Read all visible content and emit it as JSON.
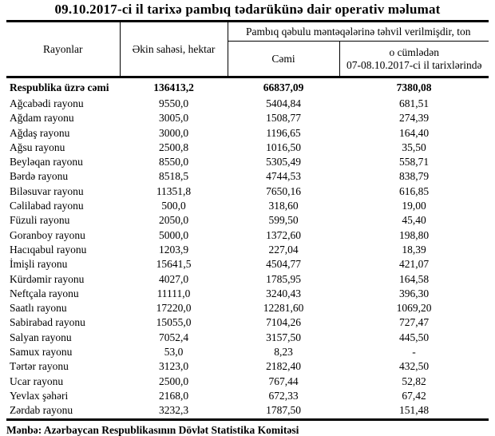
{
  "title": "09.10.2017-ci il tarixə pambıq tədarükünə dair operativ məlumat",
  "table": {
    "headers": {
      "regions": "Rayonlar",
      "sown_area": "Əkin sahəsi, hektar",
      "delivery_group": "Pambıq qəbulu məntəqələrinə təhvil verilmişdir, ton",
      "total": "Cəmi",
      "including_line1": "o cümlədən",
      "including_line2": "07-08.10.2017-ci il tarixlərində"
    },
    "total_row": {
      "name": "Respublika üzrə cəmi",
      "sown_area": "136413,2",
      "total": "66837,09",
      "including": "7380,08"
    },
    "rows": [
      [
        "Ağcabədi rayonu",
        "9550,0",
        "5404,84",
        "681,51"
      ],
      [
        "Ağdam rayonu",
        "3005,0",
        "1508,77",
        "274,39"
      ],
      [
        "Ağdaş rayonu",
        "3000,0",
        "1196,65",
        "164,40"
      ],
      [
        "Ağsu rayonu",
        "2500,8",
        "1016,50",
        "35,50"
      ],
      [
        "Beyləqan rayonu",
        "8550,0",
        "5305,49",
        "558,71"
      ],
      [
        "Bərdə rayonu",
        "8518,5",
        "4744,53",
        "838,79"
      ],
      [
        "Biləsuvar rayonu",
        "11351,8",
        "7650,16",
        "616,85"
      ],
      [
        "Cəlilabad rayonu",
        "500,0",
        "318,60",
        "19,00"
      ],
      [
        "Füzuli rayonu",
        "2050,0",
        "599,50",
        "45,40"
      ],
      [
        "Goranboy rayonu",
        "5000,0",
        "1372,60",
        "198,80"
      ],
      [
        "Hacıqabul rayonu",
        "1203,9",
        "227,04",
        "18,39"
      ],
      [
        "İmişli rayonu",
        "15641,5",
        "4504,77",
        "421,07"
      ],
      [
        "Kürdəmir rayonu",
        "4027,0",
        "1785,95",
        "164,58"
      ],
      [
        "Neftçala rayonu",
        "11111,0",
        "3240,43",
        "396,30"
      ],
      [
        "Saatlı rayonu",
        "17220,0",
        "12281,60",
        "1069,20"
      ],
      [
        "Sabirabad rayonu",
        "15055,0",
        "7104,26",
        "727,47"
      ],
      [
        "Salyan rayonu",
        "7052,4",
        "3157,50",
        "445,50"
      ],
      [
        "Samux rayonu",
        "53,0",
        "8,23",
        "-"
      ],
      [
        "Tərtər rayonu",
        "3123,0",
        "2182,40",
        "432,50"
      ],
      [
        "Ucar rayonu",
        "2500,0",
        "767,44",
        "52,82"
      ],
      [
        "Yevlax şəhəri",
        "2168,0",
        "672,33",
        "67,42"
      ],
      [
        "Zərdab rayonu",
        "3232,3",
        "1787,50",
        "151,48"
      ]
    ]
  },
  "footer": "Mənbə: Azərbaycan Respublikasının Dövlət Statistika Komitəsi"
}
